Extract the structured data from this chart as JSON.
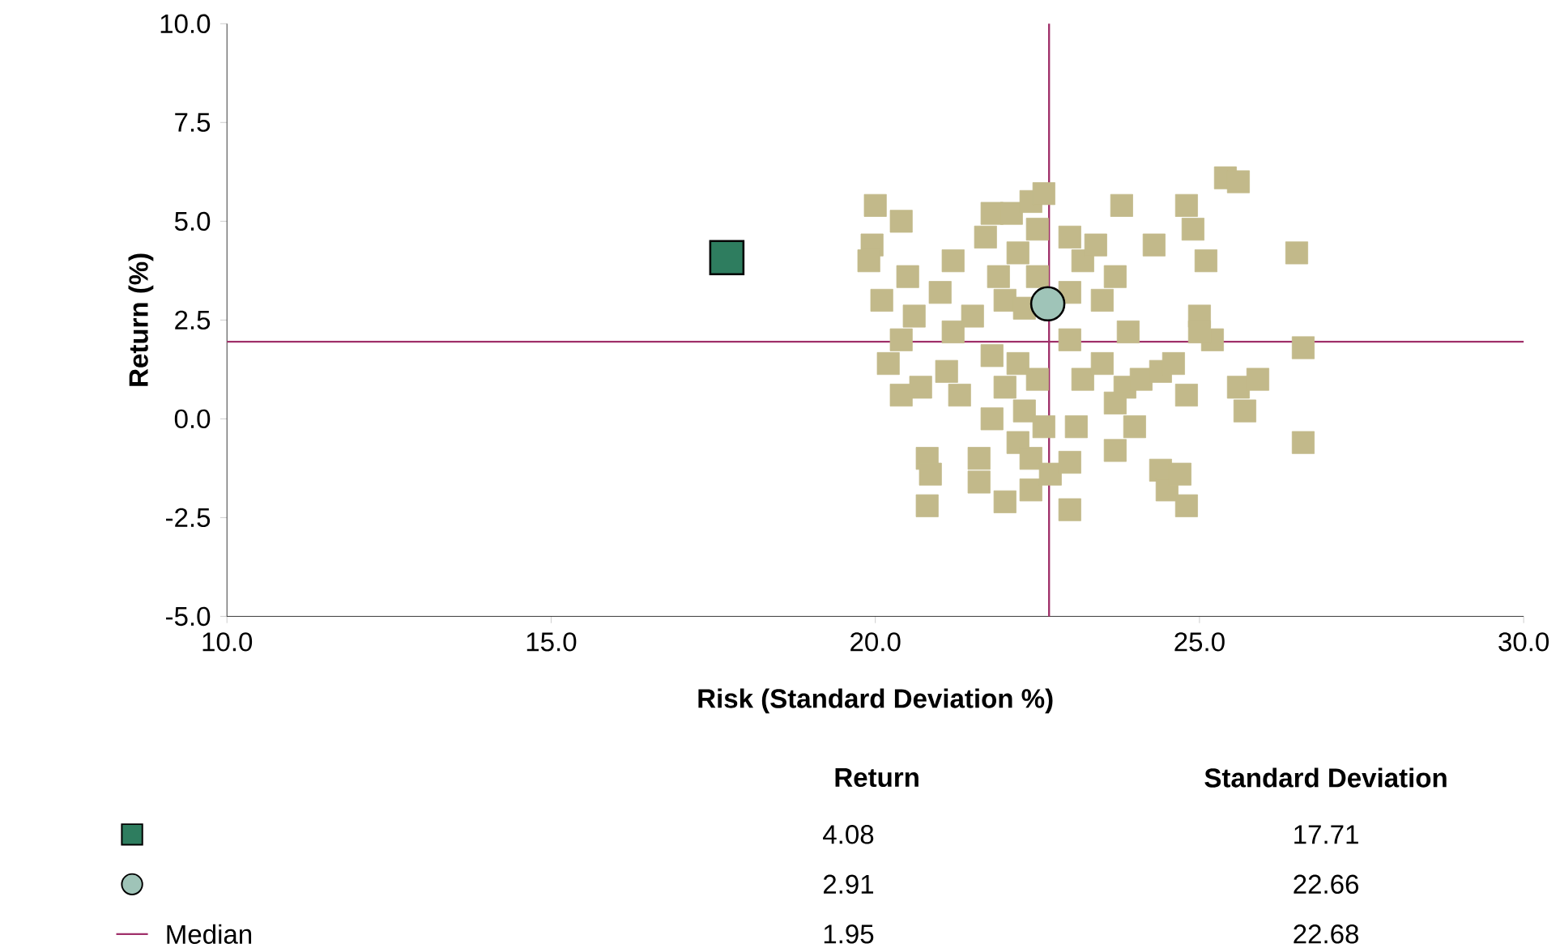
{
  "chart_data": {
    "type": "scatter",
    "xlabel": "Risk (Standard Deviation %)",
    "ylabel": "Return (%)",
    "xlim": [
      10,
      30
    ],
    "ylim": [
      -5,
      10
    ],
    "xticks": [
      {
        "value": 10,
        "label": "10.0"
      },
      {
        "value": 15,
        "label": "15.0"
      },
      {
        "value": 20,
        "label": "20.0"
      },
      {
        "value": 25,
        "label": "25.0"
      },
      {
        "value": 30,
        "label": "30.0"
      }
    ],
    "yticks": [
      {
        "value": -5,
        "label": "-5.0"
      },
      {
        "value": -2.5,
        "label": "-2.5"
      },
      {
        "value": 0,
        "label": "0.0"
      },
      {
        "value": 2.5,
        "label": "2.5"
      },
      {
        "value": 5,
        "label": "5.0"
      },
      {
        "value": 7.5,
        "label": "7.5"
      },
      {
        "value": 10,
        "label": "10.0"
      }
    ],
    "marker": "square",
    "legend": "bottom",
    "series": [
      {
        "color": "#c2b98a",
        "x": [
          20.0,
          19.95,
          19.9,
          20.1,
          20.4,
          20.2,
          20.4,
          20.5,
          20.6,
          20.4,
          20.7,
          20.8,
          20.8,
          20.85,
          21.2,
          21.0,
          21.2,
          21.1,
          21.3,
          21.5,
          21.6,
          21.6,
          21.8,
          21.7,
          21.9,
          22.0,
          21.8,
          22.0,
          21.8,
          22.0,
          22.1,
          22.2,
          22.4,
          22.5,
          22.3,
          22.2,
          22.3,
          22.2,
          22.4,
          22.4,
          22.6,
          22.5,
          22.5,
          22.6,
          22.7,
          23.0,
          23.0,
          23.2,
          23.0,
          23.2,
          23.1,
          23.0,
          23.0,
          23.4,
          23.5,
          23.5,
          23.7,
          23.7,
          23.8,
          23.9,
          23.85,
          23.7,
          24.0,
          24.3,
          24.1,
          24.4,
          24.6,
          24.4,
          24.5,
          24.7,
          24.8,
          24.9,
          25.1,
          25.0,
          25.2,
          24.8,
          24.8,
          25.0,
          25.4,
          25.6,
          25.6,
          25.7,
          25.9,
          26.5,
          26.6,
          26.6
        ],
        "values": [
          5.4,
          4.4,
          4.0,
          3.0,
          2.0,
          1.4,
          5.0,
          3.6,
          2.6,
          0.6,
          0.8,
          -1.0,
          -2.2,
          -1.4,
          4.0,
          3.2,
          2.2,
          1.2,
          0.6,
          2.6,
          -1.6,
          -1.0,
          5.2,
          4.6,
          3.6,
          3.0,
          1.6,
          0.8,
          0.0,
          -2.1,
          5.2,
          4.2,
          5.5,
          4.8,
          2.8,
          1.4,
          0.2,
          -0.6,
          -1.0,
          -1.8,
          5.7,
          3.6,
          1.0,
          -0.2,
          -1.4,
          3.2,
          4.6,
          4.0,
          2.0,
          1.0,
          -0.2,
          -2.3,
          -1.1,
          4.4,
          3.0,
          1.4,
          3.6,
          -0.8,
          5.4,
          2.2,
          0.8,
          0.4,
          -0.2,
          4.4,
          1.0,
          1.2,
          1.4,
          -1.3,
          -1.8,
          -1.4,
          5.4,
          4.8,
          4.0,
          2.6,
          2.0,
          0.6,
          -2.2,
          2.2,
          6.1,
          6.0,
          0.8,
          0.2,
          1.0,
          4.2,
          1.8,
          -0.6
        ]
      },
      {
        "color": "#2e7d5f",
        "marker": "square",
        "x": [
          17.71
        ],
        "values": [
          4.08
        ]
      },
      {
        "color": "#9fc4b8",
        "marker": "circle",
        "x": [
          22.66
        ],
        "values": [
          2.91
        ]
      }
    ],
    "ref_lines": [
      {
        "axis": "x",
        "value": 22.68,
        "color": "#a0306a"
      },
      {
        "axis": "y",
        "value": 1.95,
        "color": "#a0306a",
        "label": "Median"
      }
    ],
    "annotations": [
      "Return",
      "Standard Deviation",
      "4.08",
      "17.71",
      "2.91",
      "22.66",
      "1.95",
      "22.68"
    ]
  }
}
